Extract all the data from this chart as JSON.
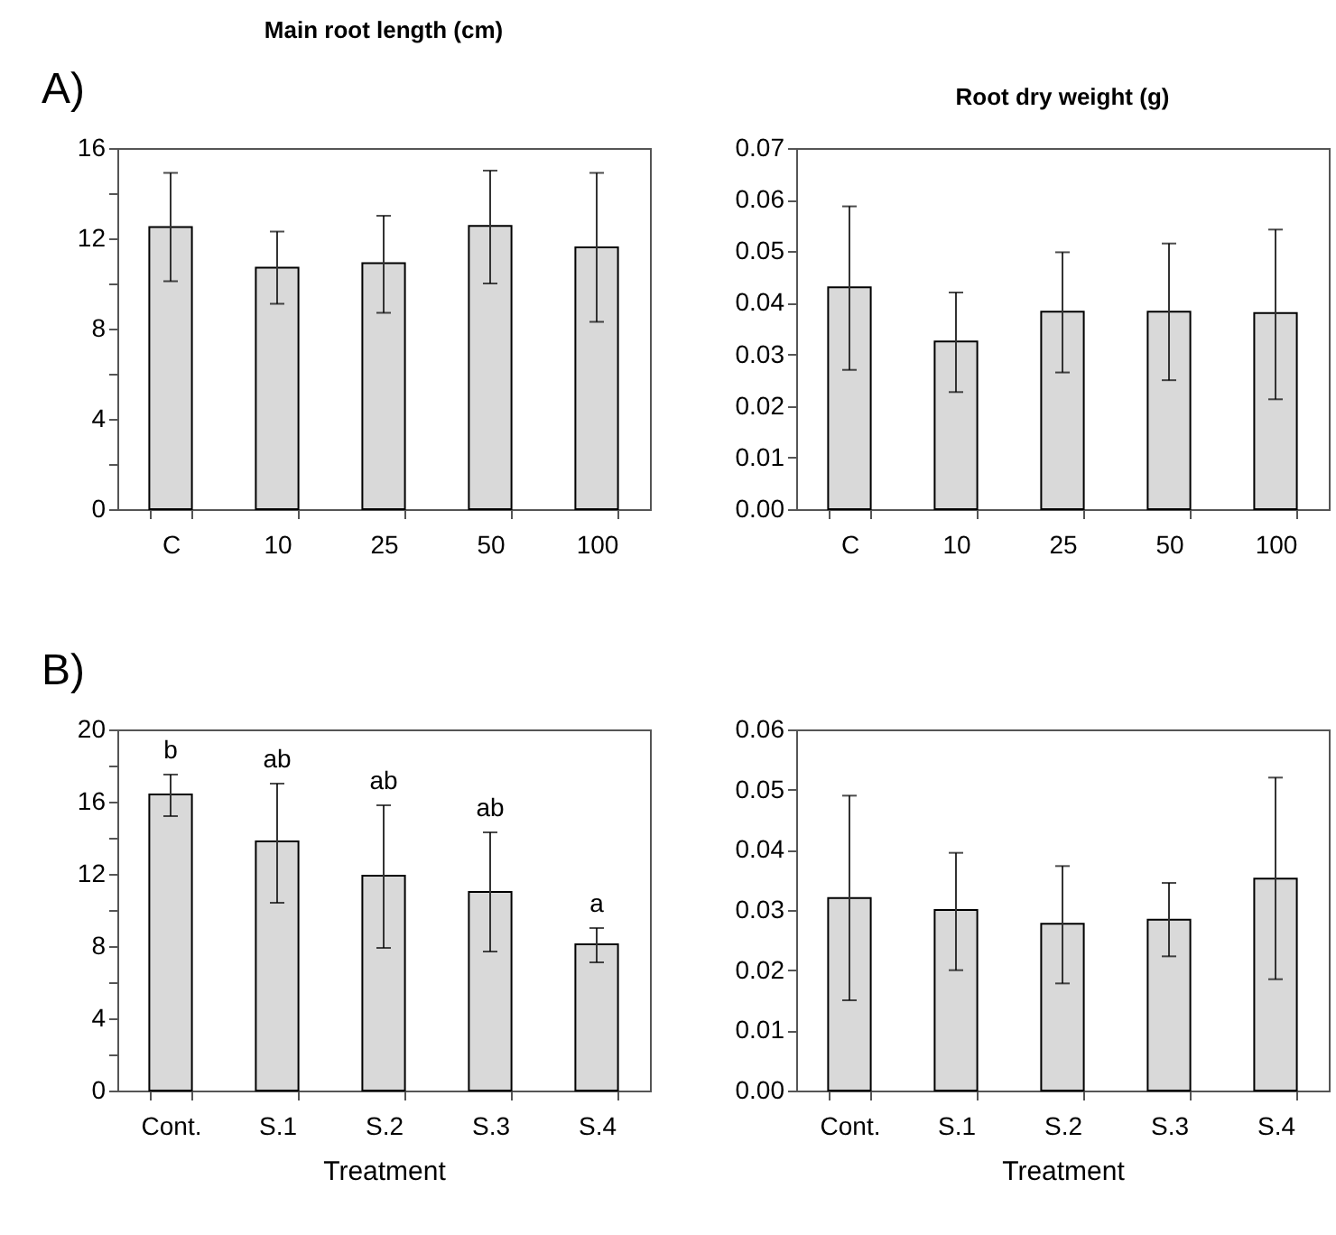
{
  "chart_data": [
    {
      "type": "bar",
      "title": "Main root length (cm)",
      "categories": [
        "C",
        "10",
        "25",
        "50",
        "100"
      ],
      "values": [
        12.5,
        10.7,
        10.9,
        12.55,
        11.6
      ],
      "color": "#d9d9d9",
      "errors": [
        [
          10.1,
          14.9
        ],
        [
          9.1,
          12.3
        ],
        [
          8.7,
          13.0
        ],
        [
          10.0,
          15.0
        ],
        [
          8.3,
          14.9
        ]
      ],
      "ylim": [
        0,
        16
      ],
      "yticks": [
        0,
        {
          "value": 2,
          "label": null
        },
        4,
        {
          "value": 6,
          "label": null
        },
        8,
        {
          "value": 10,
          "label": null
        },
        12,
        {
          "value": 14,
          "label": null
        },
        16
      ],
      "grid": false,
      "annotations": [
        "A)"
      ]
    },
    {
      "type": "bar",
      "title": "Root dry weight (g)",
      "categories": [
        "C",
        "10",
        "25",
        "50",
        "100"
      ],
      "values": [
        0.043,
        0.0325,
        0.0383,
        0.0383,
        0.038
      ],
      "color": "#d9d9d9",
      "errors": [
        [
          0.027,
          0.0587
        ],
        [
          0.0227,
          0.042
        ],
        [
          0.0265,
          0.0498
        ],
        [
          0.025,
          0.0515
        ],
        [
          0.0213,
          0.0542
        ]
      ],
      "ylim": [
        0,
        0.07
      ],
      "yticks": [
        {
          "value": 0,
          "label": "0.00"
        },
        0.01,
        0.02,
        0.03,
        0.04,
        0.05,
        0.06,
        0.07
      ],
      "grid": false
    },
    {
      "type": "bar",
      "xlabel": "Treatment",
      "categories": [
        "Cont.",
        "S.1",
        "S.2",
        "S.3",
        "S.4"
      ],
      "values": [
        16.4,
        13.8,
        11.9,
        11.0,
        8.1
      ],
      "color": "#d9d9d9",
      "errors": [
        [
          15.2,
          17.5
        ],
        [
          10.4,
          17.0
        ],
        [
          7.9,
          15.8
        ],
        [
          7.7,
          14.3
        ],
        [
          7.1,
          9.0
        ]
      ],
      "ylim": [
        0,
        20
      ],
      "yticks": [
        0,
        {
          "value": 2,
          "label": null
        },
        4,
        {
          "value": 6,
          "label": null
        },
        8,
        {
          "value": 10,
          "label": null
        },
        12,
        {
          "value": 14,
          "label": null
        },
        16,
        {
          "value": 18,
          "label": null
        },
        20
      ],
      "grid": false,
      "annotations": [
        "B)",
        "b",
        "ab",
        "ab",
        "ab",
        "a"
      ]
    },
    {
      "type": "bar",
      "xlabel": "Treatment",
      "categories": [
        "Cont.",
        "S.1",
        "S.2",
        "S.3",
        "S.4"
      ],
      "values": [
        0.032,
        0.03,
        0.0277,
        0.0284,
        0.0352
      ],
      "color": "#d9d9d9",
      "errors": [
        [
          0.015,
          0.049
        ],
        [
          0.02,
          0.0395
        ],
        [
          0.0178,
          0.0373
        ],
        [
          0.0223,
          0.0345
        ],
        [
          0.0185,
          0.052
        ]
      ],
      "ylim": [
        0,
        0.06
      ],
      "yticks": [
        {
          "value": 0,
          "label": "0.00"
        },
        0.01,
        0.02,
        0.03,
        0.04,
        0.05,
        0.06
      ],
      "grid": false
    }
  ]
}
